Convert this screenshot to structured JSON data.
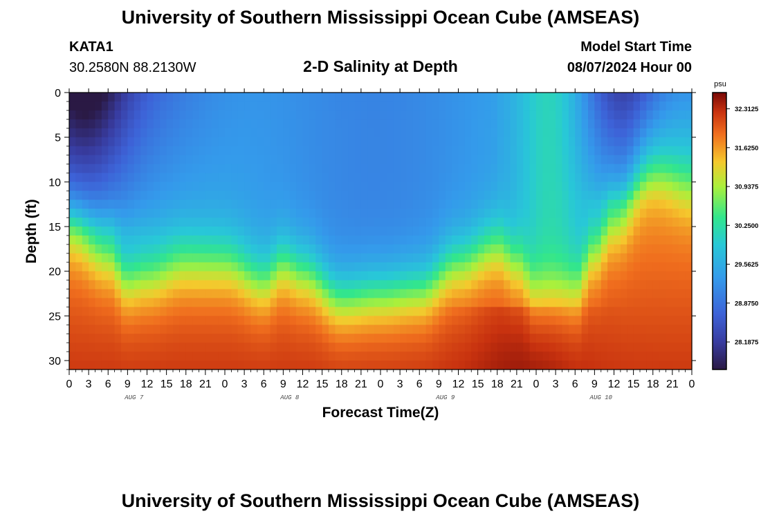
{
  "header": {
    "main_title": "University of Southern Mississippi Ocean Cube (AMSEAS)",
    "station": "KATA1",
    "coords": "30.2580N  88.2130W",
    "plot_title": "2-D Salinity at Depth",
    "model_start_label": "Model Start Time",
    "model_start_value": "08/07/2024 Hour 00",
    "footer_title": "University of Southern Mississippi Ocean Cube (AMSEAS)"
  },
  "chart_data": {
    "type": "heatmap",
    "title": "2-D Salinity at Depth",
    "xlabel": "Forecast Time(Z)",
    "ylabel": "Depth (ft)",
    "units": "psu",
    "x_ticks": [
      "0",
      "3",
      "6",
      "9",
      "12",
      "15",
      "18",
      "21",
      "0",
      "3",
      "6",
      "9",
      "12",
      "15",
      "18",
      "21",
      "0",
      "3",
      "6",
      "9",
      "12",
      "15",
      "18",
      "21",
      "0",
      "3",
      "6",
      "9",
      "12",
      "15",
      "18",
      "21",
      "0"
    ],
    "x_range_hours": [
      0,
      96
    ],
    "day_labels": [
      "AUG 7",
      "AUG 8",
      "AUG 9",
      "AUG 10"
    ],
    "y_ticks": [
      0,
      5,
      10,
      15,
      20,
      25,
      30
    ],
    "y_range_ft": [
      0,
      31
    ],
    "colorbar_ticks": [
      "32.3125",
      "31.6250",
      "30.9375",
      "30.2500",
      "29.5625",
      "28.8750",
      "28.1875"
    ],
    "colorbar_values": [
      32.3125,
      31.625,
      30.9375,
      30.25,
      29.5625,
      28.875,
      28.1875
    ],
    "value_range": [
      27.7,
      32.6
    ],
    "halocline_depth_ft": {
      "hours": [
        0,
        6,
        9,
        12,
        18,
        24,
        30,
        33,
        36,
        42,
        48,
        54,
        60,
        66,
        69,
        72,
        78,
        81,
        84,
        90,
        96
      ],
      "depth": [
        15,
        18,
        21,
        20.5,
        19,
        19,
        21,
        19,
        20,
        23,
        22.5,
        22,
        19,
        17,
        19,
        22,
        22,
        17.5,
        14,
        9,
        11
      ]
    },
    "surface_fresh_pulses": [
      {
        "center_hour": 2,
        "width_hours": 7,
        "intensity": 1.0,
        "depth_extent_ft": 15
      },
      {
        "center_hour": 10,
        "width_hours": 14,
        "intensity": 0.55,
        "depth_extent_ft": 16
      },
      {
        "center_hour": 85,
        "width_hours": 6,
        "intensity": 0.9,
        "depth_extent_ft": 12
      }
    ]
  }
}
